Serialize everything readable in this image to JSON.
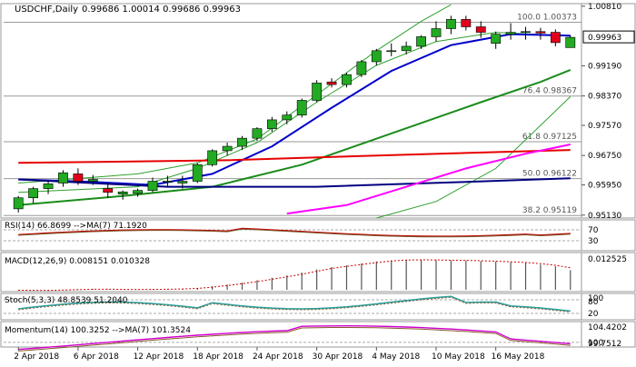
{
  "chart_data": {
    "type": "candlestick",
    "title": "USDCHF,Daily",
    "ohlc_header": "0.99686 1.00014 0.99686 0.99963",
    "current_price": 0.99963,
    "y_ticks": [
      1.0081,
      0.9919,
      0.9837,
      0.9757,
      0.9675,
      0.9595,
      0.9513
    ],
    "y_tick_labels": [
      "1.00810",
      "0.99190",
      "0.98370",
      "0.97570",
      "0.96750",
      "0.95950",
      "0.95130"
    ],
    "ylim": [
      0.9505,
      1.0088
    ],
    "x_labels": [
      "2 Apr 2018",
      "6 Apr 2018",
      "12 Apr 2018",
      "18 Apr 2018",
      "24 Apr 2018",
      "30 Apr 2018",
      "4 May 2018",
      "10 May 2018",
      "16 May 2018"
    ],
    "fibonacci": [
      {
        "label": "100.0 1.00373",
        "level": 1.00373
      },
      {
        "label": "76.4 0.98367",
        "level": 0.98367
      },
      {
        "label": "61.8 0.97125",
        "level": 0.97125
      },
      {
        "label": "50.0 0.96122",
        "level": 0.96122
      },
      {
        "label": "38.2 0.95119",
        "level": 0.95119
      }
    ],
    "candles": [
      [
        0.953,
        0.9565,
        0.952,
        0.956
      ],
      [
        0.956,
        0.959,
        0.9545,
        0.9585
      ],
      [
        0.9585,
        0.9605,
        0.957,
        0.9598
      ],
      [
        0.96,
        0.9635,
        0.959,
        0.9628
      ],
      [
        0.9625,
        0.964,
        0.9595,
        0.9605
      ],
      [
        0.9605,
        0.9622,
        0.9595,
        0.961
      ],
      [
        0.9585,
        0.9598,
        0.956,
        0.9575
      ],
      [
        0.957,
        0.958,
        0.9555,
        0.9576
      ],
      [
        0.9572,
        0.9585,
        0.9563,
        0.958
      ],
      [
        0.958,
        0.9615,
        0.9575,
        0.9605
      ],
      [
        0.9605,
        0.962,
        0.959,
        0.9605
      ],
      [
        0.96,
        0.962,
        0.9585,
        0.9605
      ],
      [
        0.9605,
        0.9655,
        0.96,
        0.965
      ],
      [
        0.965,
        0.9692,
        0.9645,
        0.9688
      ],
      [
        0.9688,
        0.971,
        0.9675,
        0.97
      ],
      [
        0.97,
        0.9728,
        0.969,
        0.9722
      ],
      [
        0.9722,
        0.9752,
        0.9715,
        0.9748
      ],
      [
        0.9748,
        0.978,
        0.974,
        0.9772
      ],
      [
        0.9772,
        0.9795,
        0.976,
        0.9785
      ],
      [
        0.9785,
        0.983,
        0.9778,
        0.9825
      ],
      [
        0.9825,
        0.988,
        0.982,
        0.9872
      ],
      [
        0.9875,
        0.9885,
        0.986,
        0.9868
      ],
      [
        0.9868,
        0.99,
        0.986,
        0.9895
      ],
      [
        0.9895,
        0.9935,
        0.9888,
        0.993
      ],
      [
        0.993,
        0.9965,
        0.992,
        0.996
      ],
      [
        0.996,
        0.998,
        0.9945,
        0.996
      ],
      [
        0.996,
        0.9985,
        0.995,
        0.9972
      ],
      [
        0.9972,
        1.0002,
        0.9965,
        0.9998
      ],
      [
        0.9998,
        1.004,
        0.9985,
        1.002
      ],
      [
        1.002,
        1.0055,
        1.0005,
        1.0045
      ],
      [
        1.0045,
        1.0055,
        1.0015,
        1.0025
      ],
      [
        1.0025,
        1.004,
        0.9995,
        1.001
      ],
      [
        0.998,
        1.0012,
        0.9965,
        1.0005
      ],
      [
        1.0005,
        1.0035,
        0.999,
        1.001
      ],
      [
        1.001,
        1.0025,
        0.999,
        1.0012
      ],
      [
        1.0012,
        1.0022,
        0.999,
        1.0008
      ],
      [
        1.001,
        1.0018,
        0.9972,
        0.9982
      ],
      [
        0.99686,
        1.00014,
        0.99686,
        0.99963
      ]
    ],
    "moving_averages": [
      {
        "name": "MA short",
        "color": "#0000cc",
        "points": [
          [
            0,
            0.961
          ],
          [
            5,
            0.9603
          ],
          [
            9,
            0.9595
          ],
          [
            13,
            0.9625
          ],
          [
            17,
            0.97
          ],
          [
            21,
            0.9805
          ],
          [
            25,
            0.9905
          ],
          [
            29,
            0.9975
          ],
          [
            33,
            1.0005
          ],
          [
            37,
            1.0001
          ]
        ]
      },
      {
        "name": "MA medium",
        "color": "#1a8c1a",
        "points": [
          [
            0,
            0.954
          ],
          [
            7,
            0.9565
          ],
          [
            13,
            0.959
          ],
          [
            19,
            0.965
          ],
          [
            25,
            0.9735
          ],
          [
            31,
            0.982
          ],
          [
            35,
            0.9875
          ],
          [
            37,
            0.9908
          ]
        ]
      },
      {
        "name": "MA long red",
        "color": "#e60000",
        "points": [
          [
            0,
            0.9655
          ],
          [
            14,
            0.9662
          ],
          [
            24,
            0.9675
          ],
          [
            37,
            0.969
          ]
        ]
      },
      {
        "name": "MA long navy",
        "color": "#000080",
        "points": [
          [
            0,
            0.961
          ],
          [
            10,
            0.959
          ],
          [
            20,
            0.959
          ],
          [
            30,
            0.9603
          ],
          [
            37,
            0.9613
          ]
        ]
      },
      {
        "name": "MA magenta",
        "color": "#ff00ff",
        "points": [
          [
            18,
            0.9517
          ],
          [
            22,
            0.954
          ],
          [
            26,
            0.959
          ],
          [
            30,
            0.964
          ],
          [
            34,
            0.968
          ],
          [
            37,
            0.9705
          ]
        ]
      }
    ],
    "bands": [
      {
        "name": "upper band",
        "color": "#2ea02e",
        "points": [
          [
            0,
            0.96
          ],
          [
            8,
            0.9625
          ],
          [
            12,
            0.9655
          ],
          [
            16,
            0.972
          ],
          [
            20,
            0.984
          ],
          [
            24,
            0.996
          ],
          [
            27,
            1.004
          ],
          [
            29,
            1.0085
          ]
        ]
      },
      {
        "name": "lower band",
        "color": "#2ea02e",
        "points": [
          [
            24,
            0.9505
          ],
          [
            28,
            0.955
          ],
          [
            32,
            0.964
          ],
          [
            37,
            0.9835
          ]
        ]
      },
      {
        "name": "envelope",
        "color": "#2ea02e",
        "points": [
          [
            0,
            0.9575
          ],
          [
            8,
            0.959
          ],
          [
            12,
            0.964
          ],
          [
            16,
            0.971
          ],
          [
            20,
            0.982
          ],
          [
            24,
            0.992
          ],
          [
            28,
            0.9985
          ],
          [
            32,
            1.001
          ],
          [
            37,
            1.0
          ]
        ]
      }
    ],
    "rsi": {
      "label": "RSI(14) 66.8699 -->MA(7) 71.1920",
      "levels": [
        "70",
        "30"
      ],
      "rsi_value": 66.8699,
      "ma_value": 71.192
    },
    "macd": {
      "label": "MACD(12,26,9) 0.008151 0.010328",
      "scale_label": "0.012525",
      "hist": [
        -0.0002,
        -0.0003,
        -0.0002,
        0.0,
        0.0002,
        0.0003,
        0.0002,
        0.0001,
        0.0001,
        0.0002,
        0.0003,
        0.0004,
        0.0008,
        0.0015,
        0.0022,
        0.003,
        0.004,
        0.005,
        0.006,
        0.0072,
        0.0085,
        0.0095,
        0.0102,
        0.011,
        0.0118,
        0.0123,
        0.0125,
        0.0125,
        0.0124,
        0.0123,
        0.0122,
        0.012,
        0.0118,
        0.0115,
        0.0112,
        0.0105,
        0.0098,
        0.0082
      ],
      "signal_end": 0.010328
    },
    "stoch": {
      "label": "Stoch(5,3,3) 48.8539 51.2040",
      "scale_labels": [
        "100",
        "80",
        "20"
      ]
    },
    "momentum": {
      "label": "Momentum(14) 100.3252 -->MA(7) 101.3524",
      "scale_labels": [
        "104.4202",
        "100",
        "99.7512"
      ]
    }
  }
}
